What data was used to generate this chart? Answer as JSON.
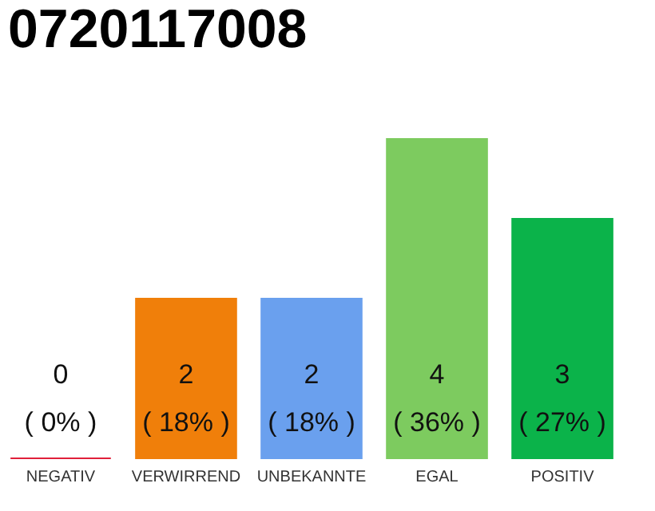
{
  "chart_data": {
    "type": "bar",
    "title": "0720117008",
    "categories": [
      "NEGATIV",
      "VERWIRREND",
      "UNBEKANNTE",
      "EGAL",
      "POSITIV"
    ],
    "values": [
      0,
      2,
      2,
      4,
      3
    ],
    "colors": [
      "#e0203a",
      "#f07f0a",
      "#6aa0ee",
      "#7dcb5f",
      "#0bb34a"
    ],
    "value_labels": [
      "0\n( 0% )",
      "2\n( 18% )",
      "2\n( 18% )",
      "4\n( 36% )",
      "3\n( 27% )"
    ]
  }
}
